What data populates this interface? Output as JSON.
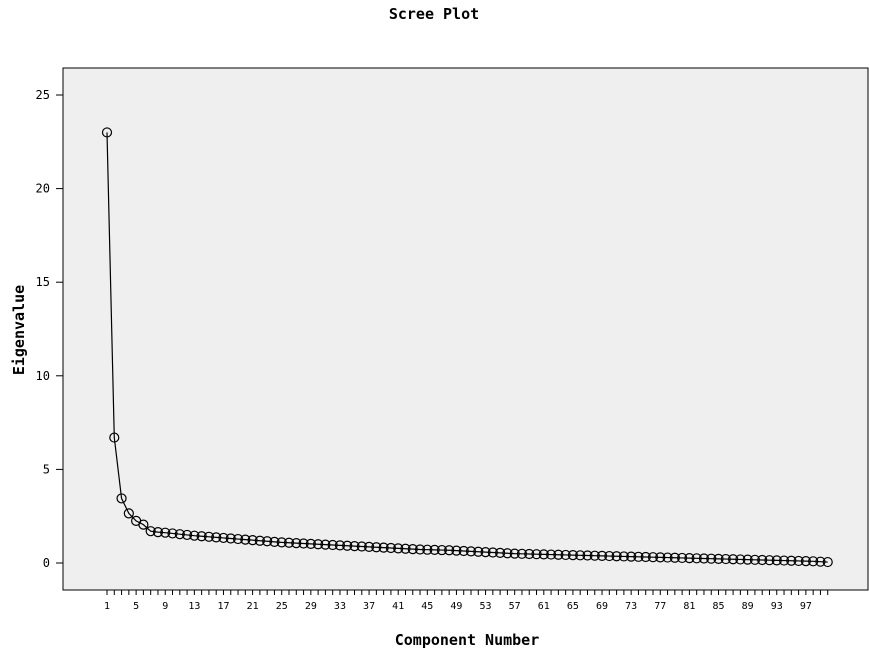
{
  "chart_data": {
    "type": "line",
    "title": "Scree Plot",
    "xlabel": "Component Number",
    "ylabel": "Eigenvalue",
    "xlim": [
      1,
      100
    ],
    "ylim": [
      0,
      25
    ],
    "y_ticks": [
      0,
      5,
      10,
      15,
      20,
      25
    ],
    "x_tick_labels": [
      1,
      5,
      9,
      13,
      17,
      21,
      25,
      29,
      33,
      37,
      41,
      45,
      49,
      53,
      57,
      61,
      65,
      69,
      73,
      77,
      81,
      85,
      89,
      93,
      97
    ],
    "grid": false,
    "plot_background": "#efefef",
    "line_color": "#000000",
    "marker": "open-circle",
    "x": [
      1,
      2,
      3,
      4,
      5,
      6,
      7,
      8,
      9,
      10,
      11,
      12,
      13,
      14,
      15,
      16,
      17,
      18,
      19,
      20,
      21,
      22,
      23,
      24,
      25,
      26,
      27,
      28,
      29,
      30,
      31,
      32,
      33,
      34,
      35,
      36,
      37,
      38,
      39,
      40,
      41,
      42,
      43,
      44,
      45,
      46,
      47,
      48,
      49,
      50,
      51,
      52,
      53,
      54,
      55,
      56,
      57,
      58,
      59,
      60,
      61,
      62,
      63,
      64,
      65,
      66,
      67,
      68,
      69,
      70,
      71,
      72,
      73,
      74,
      75,
      76,
      77,
      78,
      79,
      80,
      81,
      82,
      83,
      84,
      85,
      86,
      87,
      88,
      89,
      90,
      91,
      92,
      93,
      94,
      95,
      96,
      97,
      98,
      99,
      100
    ],
    "values": [
      23.0,
      6.7,
      3.45,
      2.65,
      2.25,
      2.05,
      1.7,
      1.65,
      1.62,
      1.58,
      1.54,
      1.5,
      1.46,
      1.43,
      1.4,
      1.37,
      1.34,
      1.31,
      1.28,
      1.25,
      1.22,
      1.19,
      1.16,
      1.13,
      1.1,
      1.08,
      1.06,
      1.04,
      1.02,
      1.0,
      0.98,
      0.96,
      0.94,
      0.92,
      0.9,
      0.88,
      0.86,
      0.84,
      0.82,
      0.8,
      0.78,
      0.76,
      0.74,
      0.72,
      0.71,
      0.7,
      0.69,
      0.68,
      0.66,
      0.64,
      0.62,
      0.6,
      0.58,
      0.56,
      0.54,
      0.52,
      0.5,
      0.49,
      0.48,
      0.47,
      0.46,
      0.45,
      0.44,
      0.43,
      0.42,
      0.41,
      0.4,
      0.39,
      0.38,
      0.37,
      0.36,
      0.35,
      0.34,
      0.33,
      0.32,
      0.31,
      0.3,
      0.29,
      0.28,
      0.27,
      0.26,
      0.25,
      0.24,
      0.23,
      0.22,
      0.21,
      0.2,
      0.19,
      0.18,
      0.17,
      0.16,
      0.15,
      0.14,
      0.13,
      0.12,
      0.11,
      0.1,
      0.09,
      0.07,
      0.05
    ]
  }
}
